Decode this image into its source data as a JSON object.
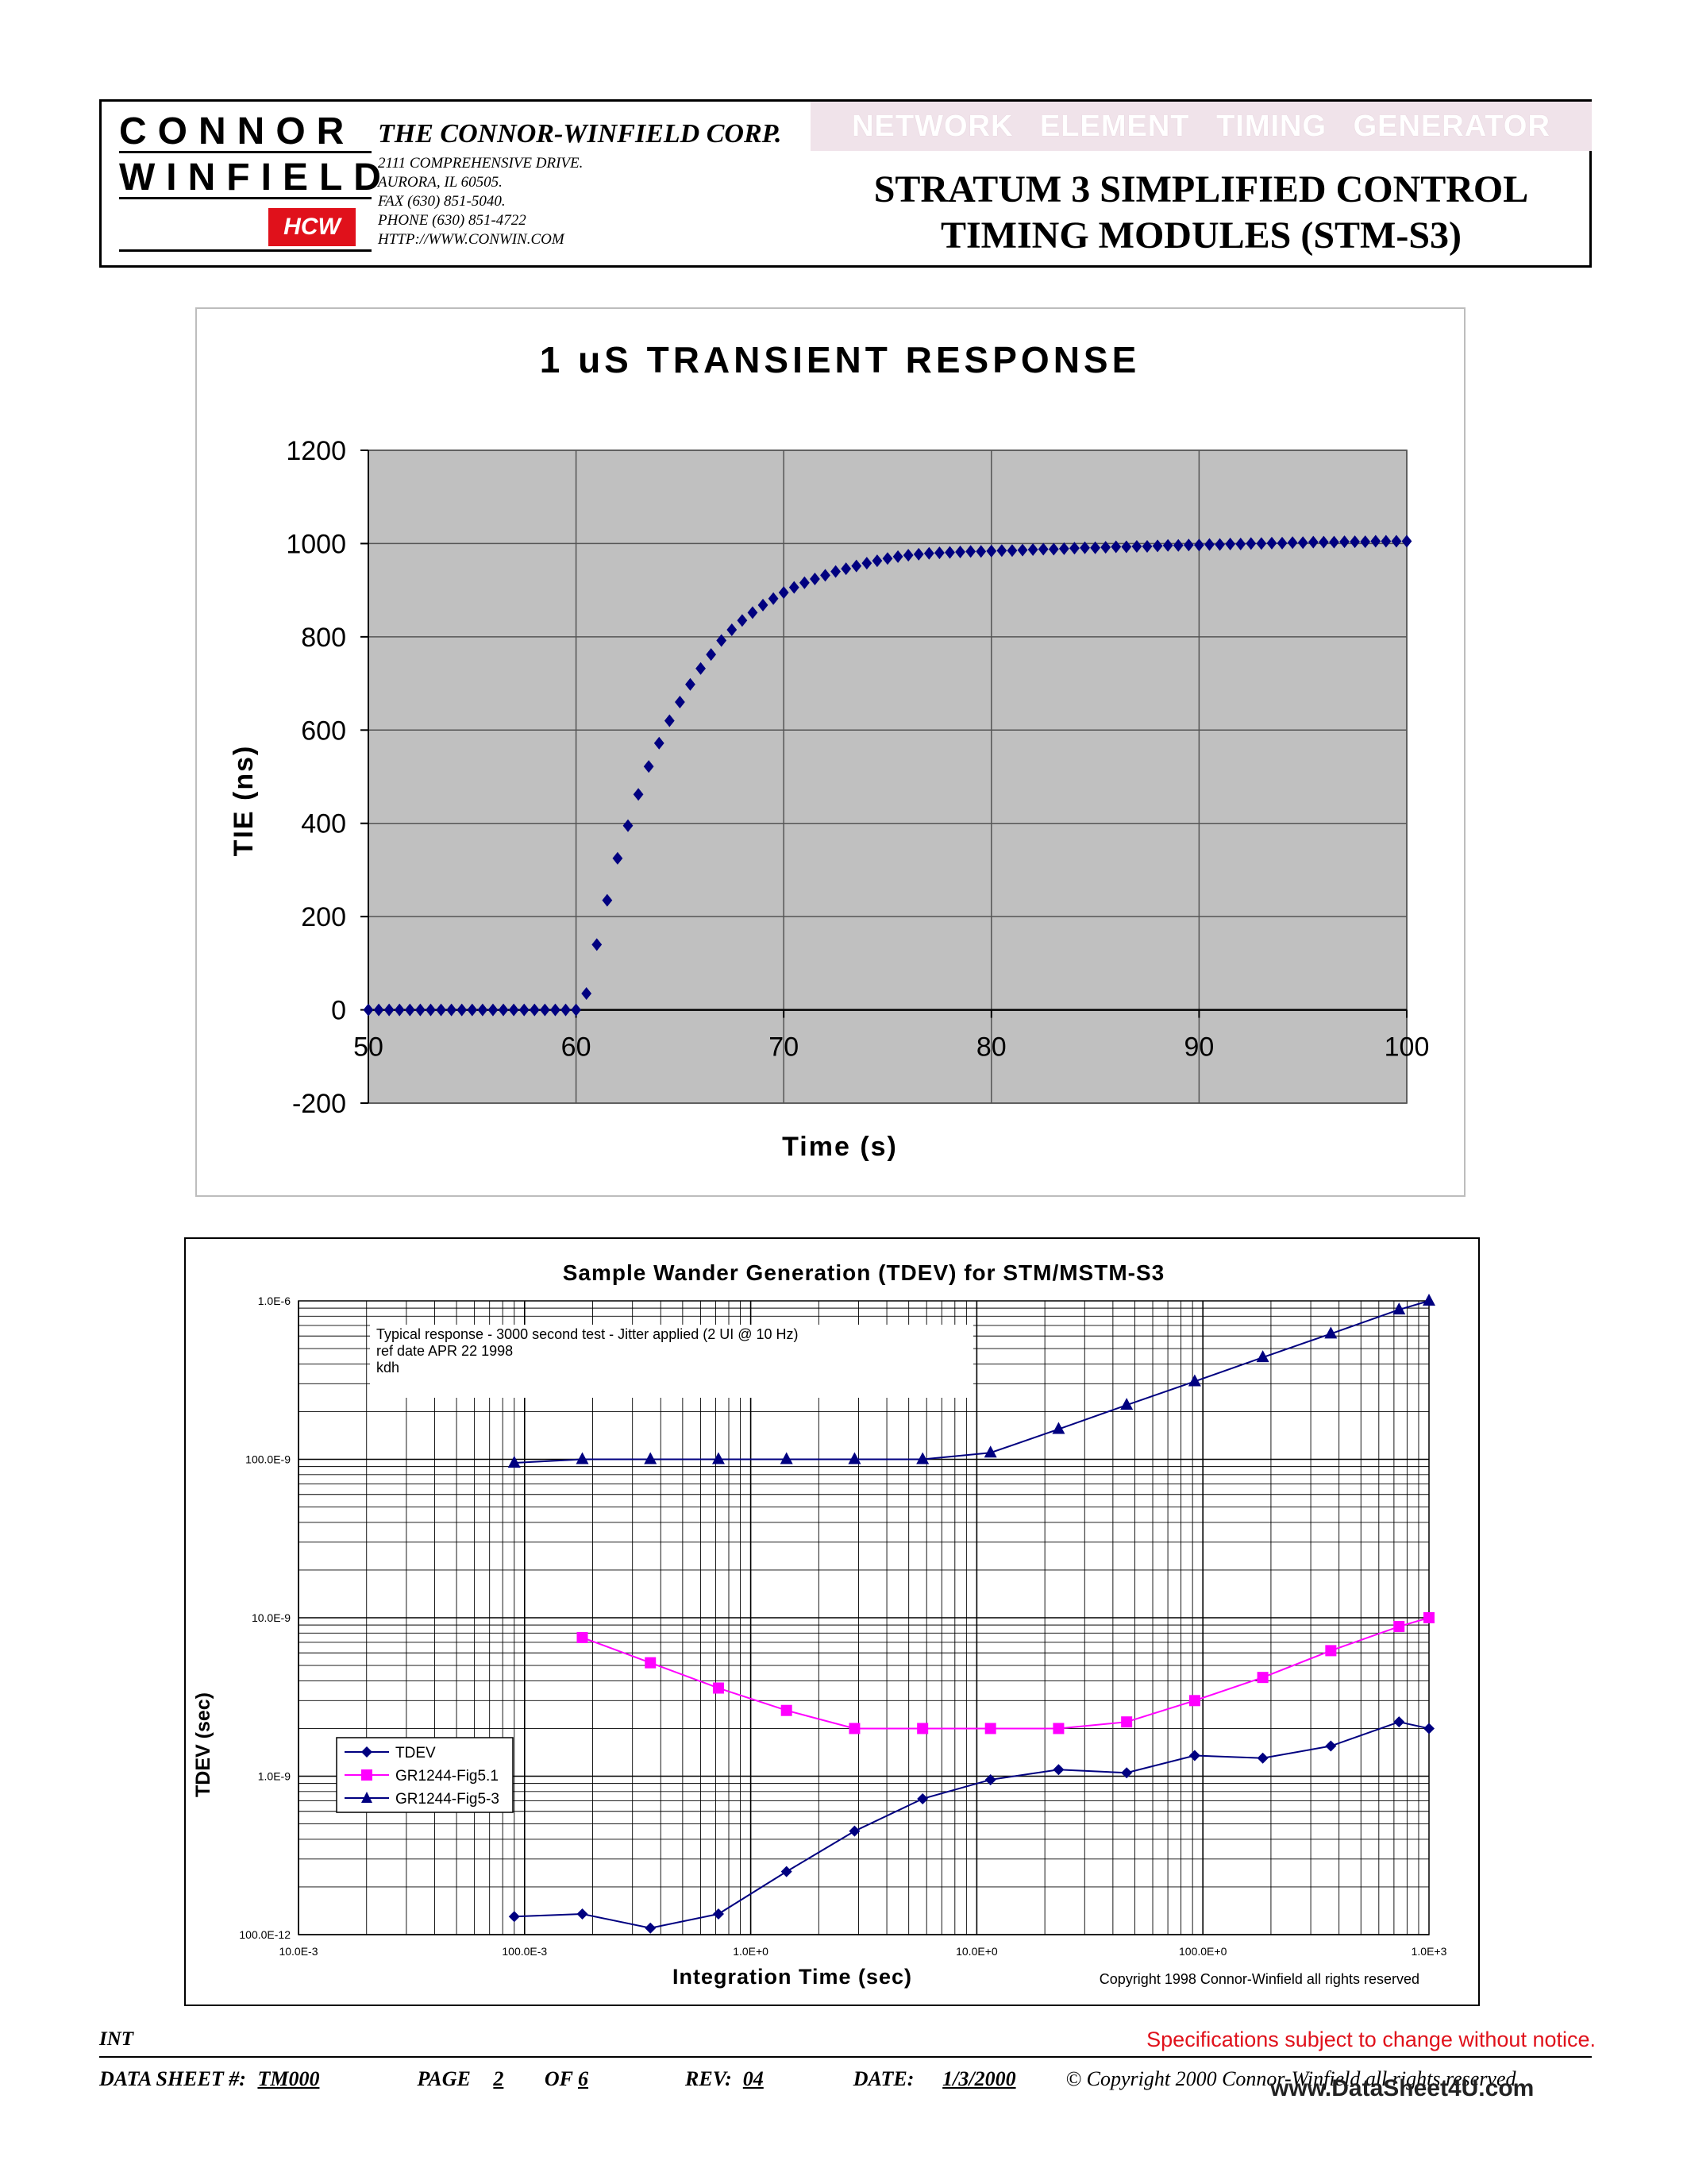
{
  "header": {
    "logo_line1": "CONNOR",
    "logo_line2": "WINFIELD",
    "logo_mark": "HCW",
    "corp_name": "THE CONNOR-WINFIELD CORP.",
    "address": [
      "2111 COMPREHENSIVE DRIVE.",
      "AURORA, IL 60505.",
      "FAX   (630) 851-5040.",
      "PHONE  (630) 851-4722",
      "HTTP://WWW.CONWIN.COM"
    ],
    "banner": "NETWORK ELEMENT TIMING GENERATOR",
    "title_line1": "STRATUM 3 SIMPLIFIED CONTROL",
    "title_line2": "TIMING MODULES (STM-S3)"
  },
  "chart_data": [
    {
      "type": "scatter",
      "title": "1 uS TRANSIENT RESPONSE",
      "xlabel": "Time (s)",
      "ylabel": "TIE (ns)",
      "xlim": [
        50,
        100
      ],
      "ylim": [
        -200,
        1200
      ],
      "xticks": [
        "50",
        "60",
        "70",
        "80",
        "90",
        "100"
      ],
      "yticks": [
        "-200",
        "0",
        "200",
        "400",
        "600",
        "800",
        "1000",
        "1200"
      ],
      "grid": true,
      "series": [
        {
          "color": "#000080",
          "marker": "diamond",
          "x": [
            50,
            50.5,
            51,
            51.5,
            52,
            52.5,
            53,
            53.5,
            54,
            54.5,
            55,
            55.5,
            56,
            56.5,
            57,
            57.5,
            58,
            58.5,
            59,
            59.5,
            60,
            60.5,
            61,
            61.5,
            62,
            62.5,
            63,
            63.5,
            64,
            64.5,
            65,
            65.5,
            66,
            66.5,
            67,
            67.5,
            68,
            68.5,
            69,
            69.5,
            70,
            70.5,
            71,
            71.5,
            72,
            72.5,
            73,
            73.5,
            74,
            74.5,
            75,
            75.5,
            76,
            76.5,
            77,
            77.5,
            78,
            78.5,
            79,
            79.5,
            80,
            80.5,
            81,
            81.5,
            82,
            82.5,
            83,
            83.5,
            84,
            84.5,
            85,
            85.5,
            86,
            86.5,
            87,
            87.5,
            88,
            88.5,
            89,
            89.5,
            90,
            90.5,
            91,
            91.5,
            92,
            92.5,
            93,
            93.5,
            94,
            94.5,
            95,
            95.5,
            96,
            96.5,
            97,
            97.5,
            98,
            98.5,
            99,
            99.5,
            100
          ],
          "y": [
            0,
            0,
            0,
            0,
            0,
            0,
            0,
            0,
            0,
            0,
            0,
            0,
            0,
            0,
            0,
            0,
            0,
            0,
            0,
            0,
            0,
            35,
            140,
            235,
            325,
            395,
            462,
            522,
            572,
            620,
            660,
            698,
            732,
            762,
            792,
            815,
            835,
            852,
            868,
            882,
            895,
            906,
            916,
            924,
            932,
            940,
            946,
            952,
            958,
            963,
            968,
            972,
            975,
            977,
            979,
            980,
            981,
            982,
            983,
            983,
            984,
            985,
            985,
            986,
            987,
            988,
            988,
            989,
            990,
            991,
            991,
            992,
            993,
            993,
            994,
            994,
            995,
            996,
            996,
            997,
            997,
            998,
            998,
            999,
            999,
            1000,
            1000,
            1001,
            1001,
            1002,
            1002,
            1003,
            1003,
            1003,
            1004,
            1004,
            1004,
            1005,
            1005,
            1005,
            1005
          ]
        }
      ]
    },
    {
      "type": "line",
      "title": "Sample Wander Generation (TDEV) for STM/MSTM-S3",
      "xlabel": "Integration Time (sec)",
      "ylabel": "TDEV (sec)",
      "x_scale": "log",
      "y_scale": "log",
      "xlim": [
        0.01,
        1000
      ],
      "ylim": [
        1e-10,
        1e-06
      ],
      "xticks": [
        "10.0E-3",
        "100.0E-3",
        "1.0E+0",
        "10.0E+0",
        "100.0E+0",
        "1.0E+3"
      ],
      "yticks": [
        "100.0E-12",
        "1.0E-9",
        "10.0E-9",
        "100.0E-9",
        "1.0E-6"
      ],
      "grid": true,
      "legend": "bottom-left",
      "annotation_lines": [
        "Typical response - 3000 second test - Jitter applied (2 UI @ 10 Hz)",
        "ref date APR 22 1998",
        "kdh"
      ],
      "copyright": "Copyright 1998 Connor-Winfield all rights reserved",
      "series": [
        {
          "name": "TDEV",
          "color": "#000080",
          "marker": "diamond",
          "x": [
            0.09,
            0.18,
            0.36,
            0.72,
            1.44,
            2.88,
            5.76,
            11.5,
            23,
            46,
            92,
            184,
            368,
            737,
            1000
          ],
          "y": [
            1.3e-10,
            1.35e-10,
            1.1e-10,
            1.35e-10,
            2.5e-10,
            4.5e-10,
            7.2e-10,
            9.5e-10,
            1.1e-09,
            1.05e-09,
            1.35e-09,
            1.3e-09,
            1.55e-09,
            2.2e-09,
            2e-09
          ]
        },
        {
          "name": "GR1244-Fig5.1",
          "color": "#ff00ff",
          "marker": "square",
          "x": [
            0.18,
            0.36,
            0.72,
            1.44,
            2.88,
            5.76,
            11.5,
            23,
            46,
            92,
            184,
            368,
            737,
            1000
          ],
          "y": [
            7.5e-09,
            5.2e-09,
            3.6e-09,
            2.6e-09,
            2e-09,
            2e-09,
            2e-09,
            2e-09,
            2.2e-09,
            3e-09,
            4.2e-09,
            6.2e-09,
            8.8e-09,
            1e-08
          ]
        },
        {
          "name": "GR1244-Fig5-3",
          "color": "#000080",
          "marker": "triangle",
          "x": [
            0.09,
            0.18,
            0.36,
            0.72,
            1.44,
            2.88,
            5.76,
            11.5,
            23,
            46,
            92,
            184,
            368,
            737,
            1000
          ],
          "y": [
            9.5e-08,
            1e-07,
            1e-07,
            1e-07,
            1e-07,
            1e-07,
            1e-07,
            1.1e-07,
            1.55e-07,
            2.2e-07,
            3.1e-07,
            4.4e-07,
            6.2e-07,
            8.8e-07,
            1e-06
          ]
        }
      ]
    }
  ],
  "footer": {
    "int_label": "INT",
    "spec_note": "Specifications subject to change without notice.",
    "data_sheet_label": "DATA SHEET  #:",
    "data_sheet_value": "TM000",
    "page_label": "PAGE",
    "page_value": "2",
    "of_label": "OF",
    "of_value": "6",
    "rev_label": "REV:",
    "rev_value": "04",
    "date_label": "DATE:",
    "date_value": "1/3/2000",
    "copyright": "© Copyright 2000 Connor-Winfield all rights reserved",
    "site_mark": "www.DataSheet4U.com"
  }
}
